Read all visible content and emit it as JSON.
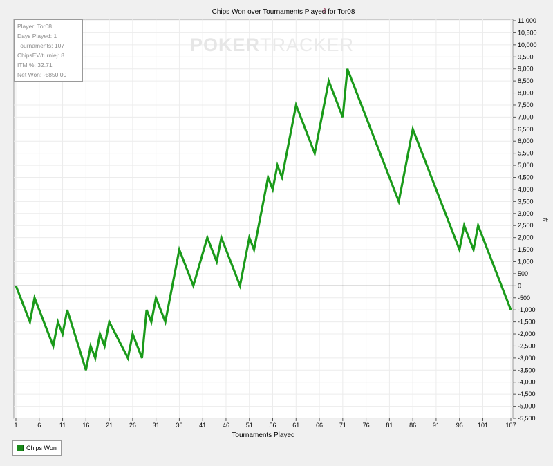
{
  "chart_data": {
    "type": "line",
    "title": "Chips Won over Tournaments Played for",
    "player": "Tor08",
    "xlabel": "Tournaments Played",
    "ylabel": "#",
    "xlim": [
      1,
      107
    ],
    "ylim": [
      -5500,
      11000
    ],
    "x_ticks": [
      1,
      6,
      11,
      16,
      21,
      26,
      31,
      36,
      41,
      46,
      51,
      56,
      61,
      66,
      71,
      76,
      81,
      86,
      91,
      96,
      101,
      107
    ],
    "y_ticks": [
      -5500,
      -5000,
      -4500,
      -4000,
      -3500,
      -3000,
      -2500,
      -2000,
      -1500,
      -1000,
      -500,
      0,
      500,
      1000,
      1500,
      2000,
      2500,
      3000,
      3500,
      4000,
      4500,
      5000,
      5500,
      6000,
      6500,
      7000,
      7500,
      8000,
      8500,
      9000,
      9500,
      10000,
      10500,
      11000
    ],
    "y_tick_labels": [
      "-5,500",
      "-5,000",
      "-4,500",
      "-4,000",
      "-3,500",
      "-3,000",
      "-2,500",
      "-2,000",
      "-1,500",
      "-1,000",
      "-500",
      "0",
      "500",
      "1,000",
      "1,500",
      "2,000",
      "2,500",
      "3,000",
      "3,500",
      "4,000",
      "4,500",
      "5,000",
      "5,500",
      "6,000",
      "6,500",
      "7,000",
      "7,500",
      "8,000",
      "8,500",
      "9,000",
      "9,500",
      "10,000",
      "10,500",
      "11,000"
    ],
    "grid": true,
    "legend_position": "bottom-left",
    "series": [
      {
        "name": "Chips Won",
        "color": "#1a9a1a",
        "x": [
          1,
          4,
          5,
          9,
          10,
          11,
          12,
          16,
          17,
          18,
          19,
          20,
          21,
          25,
          26,
          28,
          29,
          30,
          31,
          33,
          36,
          39,
          42,
          44,
          45,
          49,
          51,
          52,
          55,
          56,
          57,
          58,
          61,
          65,
          68,
          71,
          72,
          83,
          86,
          96,
          97,
          99,
          100,
          107
        ],
        "y": [
          0,
          -1500,
          -500,
          -2500,
          -1500,
          -2000,
          -1000,
          -3500,
          -2500,
          -3000,
          -2000,
          -2500,
          -1500,
          -3000,
          -2000,
          -3000,
          -1000,
          -1500,
          -500,
          -1500,
          1500,
          0,
          2000,
          1000,
          2000,
          0,
          2000,
          1500,
          4500,
          4000,
          5000,
          4500,
          7500,
          5500,
          8500,
          7000,
          9000,
          3500,
          6500,
          1500,
          2500,
          1500,
          2500,
          -1000
        ]
      }
    ]
  },
  "stats": {
    "player": "Player: Tor08",
    "days_played": "Days Played: 1",
    "tournaments": "Tournaments: 107",
    "chips_ev": "ChipsEV/turniej: 8",
    "itm": "ITM %: 32.71",
    "net_won": "Net Won: -€850.00"
  },
  "watermark": {
    "part1": "POKER",
    "part2": "TRACKER"
  },
  "legend": {
    "label": "Chips Won"
  }
}
